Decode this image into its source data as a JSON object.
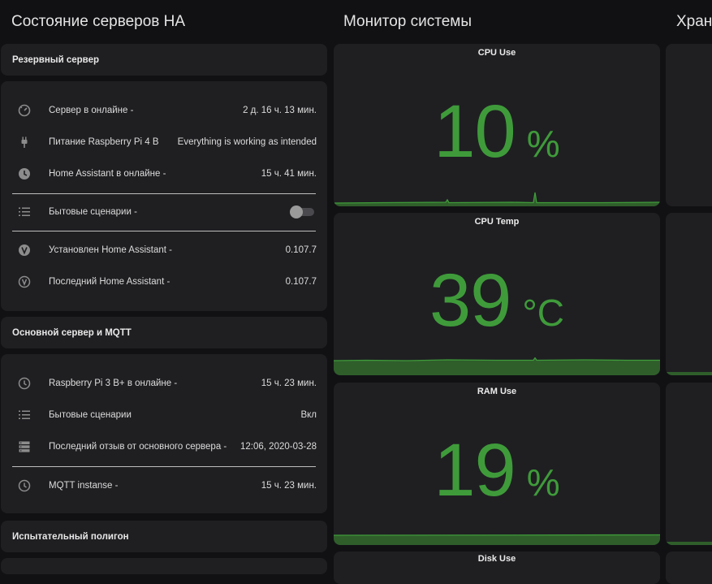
{
  "columns": {
    "left_title": "Состояние серверов HA",
    "middle_title": "Монитор системы",
    "right_title": "Хран"
  },
  "backup": {
    "title": "Резервный сервер",
    "rows": [
      {
        "name": "Сервер в онлайне -",
        "value": "2 д. 16 ч. 13 мин.",
        "icon": "timer-icon"
      },
      {
        "name": "Питание Raspberry Pi 4 B",
        "value": "Everything is working as intended",
        "icon": "power-plug-icon"
      },
      {
        "name": "Home Assistant в онлайне -",
        "value": "15 ч. 41 мин.",
        "icon": "clock-icon"
      },
      {
        "name": "Бытовые сценарии -",
        "value": "",
        "icon": "list-icon",
        "toggle": false
      },
      {
        "name": "Установлен Home Assistant -",
        "value": "0.107.7",
        "icon": "version-icon"
      },
      {
        "name": "Последний Home Assistant -",
        "value": "0.107.7",
        "icon": "version-outline-icon"
      }
    ]
  },
  "main": {
    "title": "Основной сервер и MQTT",
    "rows": [
      {
        "name": "Raspberry Pi 3 B+ в онлайне -",
        "value": "15 ч. 23 мин.",
        "icon": "clock-outline-icon"
      },
      {
        "name": "Бытовые сценарии",
        "value": "Вкл",
        "icon": "list-icon"
      },
      {
        "name": "Последний отзыв от основного сервера -",
        "value": "12:06, 2020-03-28",
        "icon": "server-icon"
      },
      {
        "name": "MQTT instanse -",
        "value": "15 ч. 23 мин.",
        "icon": "clock-outline-icon"
      }
    ]
  },
  "test": {
    "title": "Испытательный полигон"
  },
  "monitor": {
    "cpu_use": {
      "title": "CPU Use",
      "value": "10",
      "unit": "%"
    },
    "cpu_temp": {
      "title": "CPU Temp",
      "value": "39",
      "unit": "°C"
    },
    "ram_use": {
      "title": "RAM Use",
      "value": "19",
      "unit": "%"
    },
    "disk_use": {
      "title": "Disk Use"
    }
  },
  "colors": {
    "background": "#111114",
    "card": "#1f1f22",
    "accent_green": "#3f9b3a",
    "icon_gray": "#8c8c8c"
  }
}
